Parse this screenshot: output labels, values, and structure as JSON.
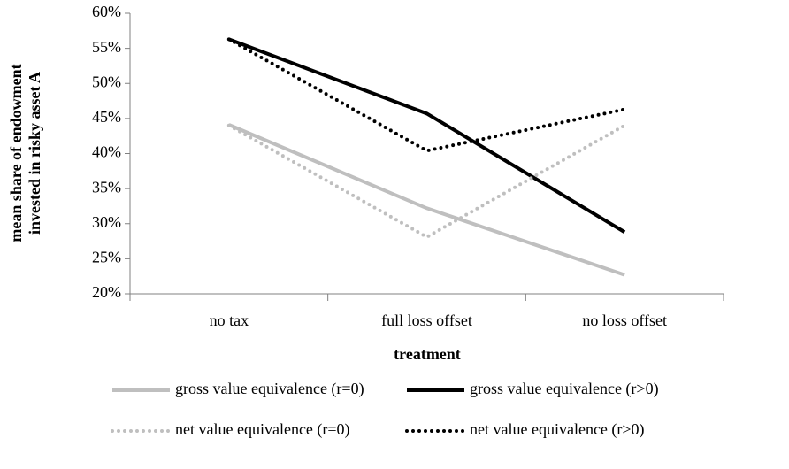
{
  "chart_data": {
    "type": "line",
    "ylabel": [
      "mean share of endowment",
      "invested in risky asset A"
    ],
    "xlabel": "treatment",
    "categories": [
      "no tax",
      "full loss offset",
      "no loss offset"
    ],
    "series": [
      {
        "name": "gross value equivalence (r=0)",
        "color": "#bfbfbf",
        "line_style": "solid",
        "values": [
          44.1,
          32.2,
          22.7
        ]
      },
      {
        "name": "gross value equivalence (r>0)",
        "color": "#000000",
        "line_style": "solid",
        "values": [
          56.3,
          45.7,
          28.8
        ]
      },
      {
        "name": "net value equivalence (r=0)",
        "color": "#bfbfbf",
        "line_style": "dotted",
        "values": [
          44.0,
          28.1,
          44.0
        ]
      },
      {
        "name": "net value equivalence (r>0)",
        "color": "#000000",
        "line_style": "dotted",
        "values": [
          56.3,
          40.4,
          46.3
        ]
      }
    ],
    "ylim": [
      20,
      60
    ],
    "yticks": [
      {
        "value": 20,
        "label": "20%"
      },
      {
        "value": 25,
        "label": "25%"
      },
      {
        "value": 30,
        "label": "30%"
      },
      {
        "value": 35,
        "label": "35%"
      },
      {
        "value": 40,
        "label": "40%"
      },
      {
        "value": 45,
        "label": "45%"
      },
      {
        "value": 50,
        "label": "50%"
      },
      {
        "value": 55,
        "label": "55%"
      },
      {
        "value": 60,
        "label": "60%"
      }
    ],
    "grid": false,
    "legend": "bottom"
  }
}
